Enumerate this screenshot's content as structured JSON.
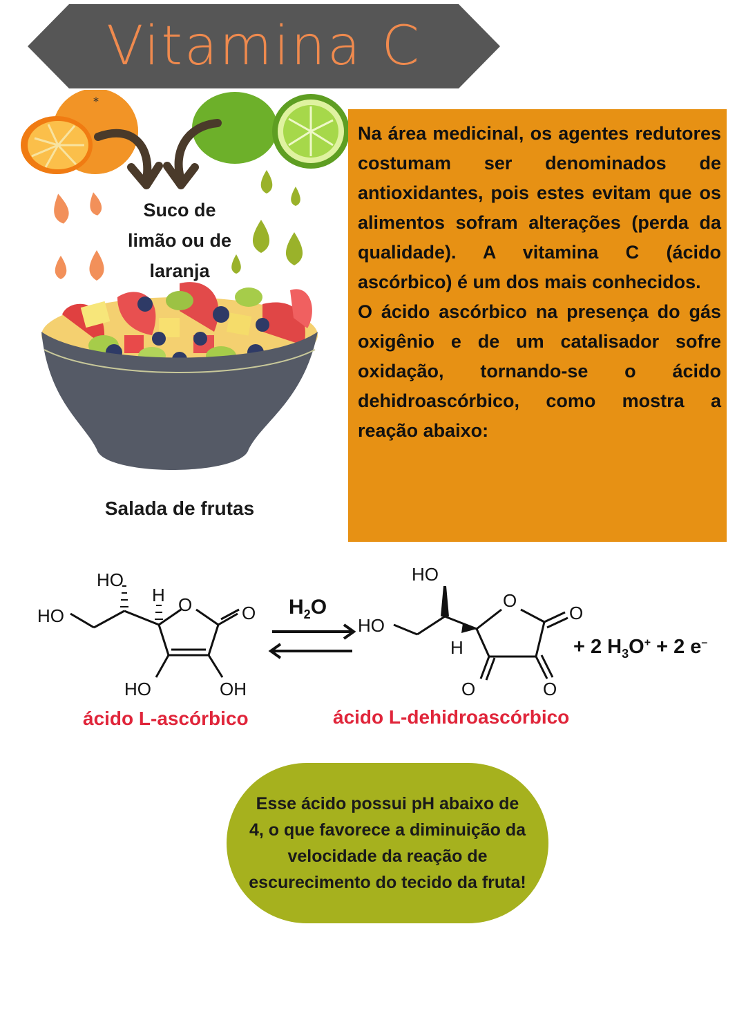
{
  "banner": {
    "title": "Vitamina C"
  },
  "illustration": {
    "juice_label_line1": "Suco de",
    "juice_label_line2": "limão ou de",
    "juice_label_line3": "laranja",
    "salad_label": "Salada de frutas"
  },
  "info": {
    "paragraph1": "Na área medicinal, os agentes redutores costumam ser denominados de antioxidantes, pois estes evitam que os alimentos sofram alterações (perda da qualidade). A vitamina C (ácido ascórbico) é um dos mais conhecidos.",
    "paragraph2": "O ácido ascórbico na presença do gás oxigênio e de um catalisador sofre oxidação, tornando-se o ácido dehidroascórbico, como mostra a reação abaixo:"
  },
  "reaction": {
    "water_main": "H",
    "water_sub": "2",
    "water_end": "O",
    "left_name": "ácido L-ascórbico",
    "right_name": "ácido L-dehidroascórbico",
    "atom_ho": "HO",
    "atom_oh": "OH",
    "atom_h": "H",
    "atom_o": "O",
    "products_prefix": "+  2 H",
    "products_sub": "3",
    "products_o": "O",
    "products_plus_sup": "+",
    "products_mid": " + 2 e",
    "products_e_sup": "–"
  },
  "note": {
    "text": "Esse ácido possui pH abaixo de 4, o que favorece a diminuição da velocidade da reação de escurecimento do tecido da fruta!"
  },
  "colors": {
    "banner": "#565656",
    "banner_text": "#ef8a4e",
    "info_box": "#e79114",
    "note_bubble": "#a6b11e",
    "chem_name": "#e0253a"
  }
}
